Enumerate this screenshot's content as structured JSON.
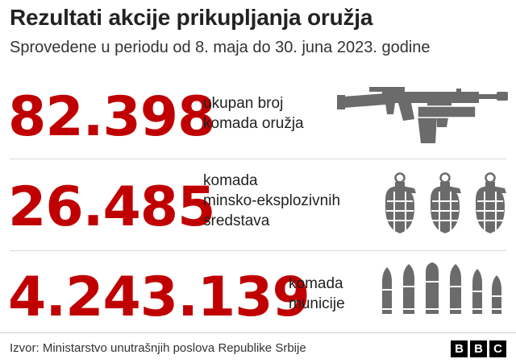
{
  "title": "Rezultati akcije prikupljanja oružja",
  "subtitle": "Sprovedene u periodu od 8. maja do 30. juna 2023. godine",
  "rows": [
    {
      "value": "82.398",
      "label_lines": [
        "ukupan broj",
        "komada oružja"
      ],
      "icon": "weapons-icon"
    },
    {
      "value": "26.485",
      "label_lines": [
        "komada",
        "minsko-eksplozivnih",
        "sredstava"
      ],
      "icon": "grenades-icon"
    },
    {
      "value": "4.243.139",
      "label_lines": [
        "komada",
        "municije"
      ],
      "icon": "ammunition-icon"
    }
  ],
  "source": "Izvor: Ministarstvo unutrašnjih poslova Republike Srbije",
  "logo": [
    "B",
    "B",
    "C"
  ],
  "colors": {
    "accent": "#c00000",
    "icon": "#6b6b6b"
  }
}
